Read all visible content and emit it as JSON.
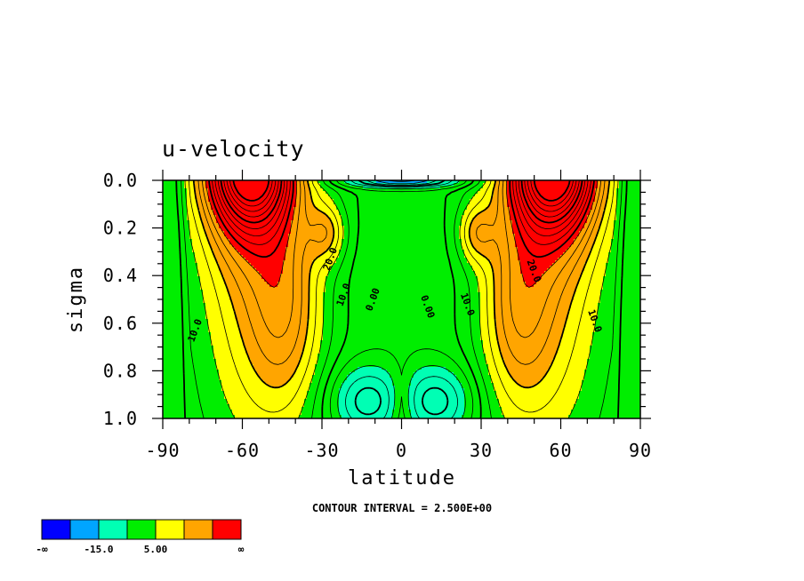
{
  "chart_data": {
    "type": "contour",
    "title": "u-velocity",
    "xlabel": "latitude",
    "ylabel": "sigma",
    "xlim": [
      -90,
      90
    ],
    "ylim": [
      0.0,
      1.0
    ],
    "y_inverted": true,
    "x_ticks": [
      "-90",
      "-60",
      "-30",
      "0",
      "30",
      "60",
      "90"
    ],
    "x_tick_values": [
      -90,
      -60,
      -30,
      0,
      30,
      60,
      90
    ],
    "y_ticks": [
      "0.0",
      "0.2",
      "0.4",
      "0.6",
      "0.8",
      "1.0"
    ],
    "y_tick_values": [
      0.0,
      0.2,
      0.4,
      0.6,
      0.8,
      1.0
    ],
    "contour_interval_note": "CONTOUR INTERVAL = 2.500E+00",
    "contour_interval": 2.5,
    "contour_labels": [
      {
        "text": "20.0",
        "lat": -27,
        "sigma": 0.33
      },
      {
        "text": "10.0",
        "lat": -22,
        "sigma": 0.48
      },
      {
        "text": "10.0",
        "lat": -78,
        "sigma": 0.63
      },
      {
        "text": "0.00",
        "lat": -11,
        "sigma": 0.5
      },
      {
        "text": "0.00",
        "lat": 10,
        "sigma": 0.53
      },
      {
        "text": "10.0",
        "lat": 25,
        "sigma": 0.52
      },
      {
        "text": "20.0",
        "lat": 50,
        "sigma": 0.38
      },
      {
        "text": "10.0",
        "lat": 73,
        "sigma": 0.59
      }
    ],
    "colorbar": {
      "colors": [
        "#0000ff",
        "#00a5ff",
        "#00ffb4",
        "#00ee00",
        "#ffff00",
        "#ffa500",
        "#ff0000"
      ],
      "labels": [
        {
          "text": "-∞",
          "index": 0
        },
        {
          "text": "-15.0",
          "index": 2
        },
        {
          "text": "5.00",
          "index": 4
        },
        {
          "text": "∞",
          "index": 7
        }
      ]
    },
    "fields": {
      "jet_maximum_lat": [
        -55,
        55
      ],
      "jet_core_sigma": 0.05,
      "easterly_surface_lat": [
        -12,
        12
      ],
      "upper_tropical_easterly_sigma": 0.02
    },
    "colors": {
      "line": "#000000",
      "background": "#ffffff"
    }
  }
}
